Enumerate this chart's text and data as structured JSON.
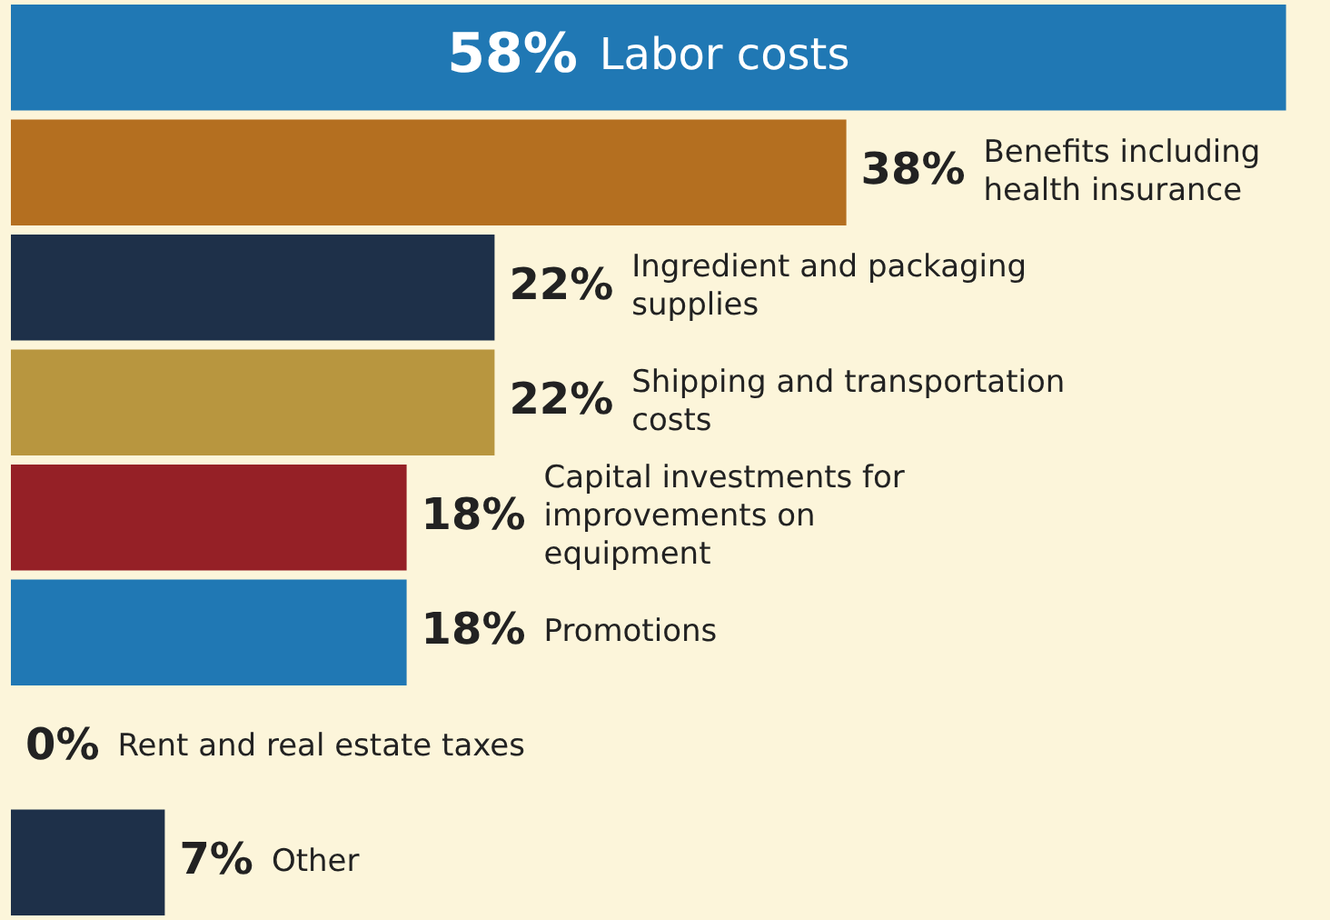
{
  "chart_data": {
    "type": "bar",
    "orientation": "horizontal",
    "legend": false,
    "categories": [
      "Labor costs",
      "Benefits including health insurance",
      "Ingredient and packaging supplies",
      "Shipping and transportation costs",
      "Capital investments for improvements on equipment",
      "Promotions",
      "Rent and real estate taxes",
      "Other"
    ],
    "values": [
      58,
      38,
      22,
      22,
      18,
      18,
      0,
      7
    ],
    "colors": [
      "#2078b4",
      "#b46f20",
      "#1e3049",
      "#b8963f",
      "#952026",
      "#2078b4",
      "#1e3049",
      "#1e3049"
    ],
    "value_labels": [
      "58%",
      "38%",
      "22%",
      "22%",
      "18%",
      "18%",
      "0%",
      "7%"
    ]
  }
}
